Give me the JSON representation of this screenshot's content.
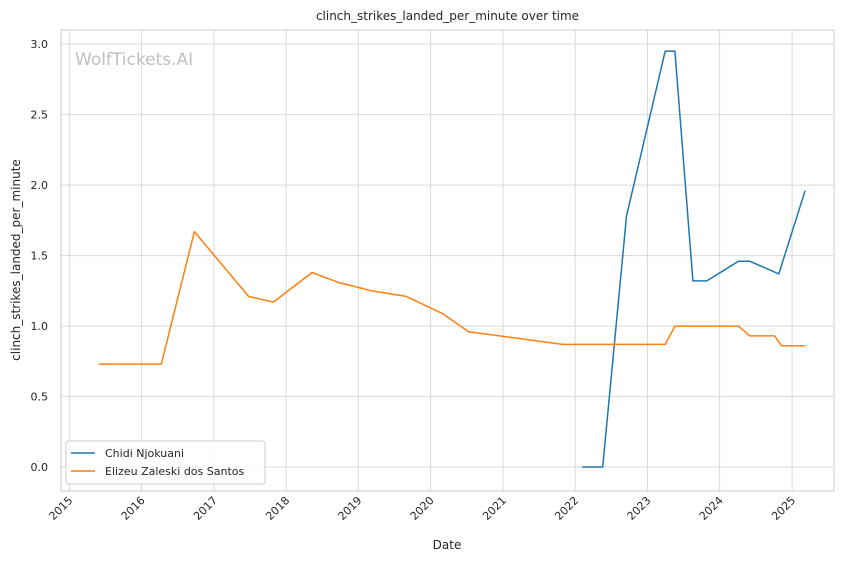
{
  "watermark": "WolfTickets.AI",
  "colors": {
    "series_1": "#1f77b4",
    "series_2": "#ff7f0e",
    "grid": "#d9d9d9",
    "frame": "#cccccc"
  },
  "chart_data": {
    "type": "line",
    "title": "clinch_strikes_landed_per_minute over time",
    "xlabel": "Date",
    "ylabel": "clinch_strikes_landed_per_minute",
    "xlim": [
      "2014-11-20",
      "2025-08-01"
    ],
    "ylim": [
      -0.17,
      3.1
    ],
    "x_ticks": [
      "2015",
      "2016",
      "2017",
      "2018",
      "2019",
      "2020",
      "2021",
      "2022",
      "2023",
      "2024",
      "2025"
    ],
    "y_ticks": [
      "0.0",
      "0.5",
      "1.0",
      "1.5",
      "2.0",
      "2.5",
      "3.0"
    ],
    "grid": true,
    "legend_position": "lower-left",
    "series": [
      {
        "name": "Chidi Njokuani",
        "x": [
          "2022-02-05",
          "2022-05-20",
          "2022-09-17",
          "2023-04-01",
          "2023-05-20",
          "2023-08-19",
          "2023-10-28",
          "2024-04-06",
          "2024-06-01",
          "2024-10-26",
          "2025-03-08"
        ],
        "y": [
          0.0,
          0.0,
          1.78,
          2.95,
          2.95,
          1.32,
          1.32,
          1.46,
          1.46,
          1.37,
          1.96
        ]
      },
      {
        "name": "Elizeu Zaleski dos Santos",
        "x": [
          "2015-05-30",
          "2016-04-10",
          "2016-09-24",
          "2017-06-25",
          "2017-10-28",
          "2018-05-12",
          "2018-09-22",
          "2019-03-09",
          "2019-08-31",
          "2020-02-29",
          "2020-07-11",
          "2021-10-30",
          "2022-05-21",
          "2023-04-01",
          "2023-05-20",
          "2024-04-06",
          "2024-06-01",
          "2024-10-05",
          "2024-11-09",
          "2025-03-08"
        ],
        "y": [
          0.73,
          0.73,
          1.67,
          1.21,
          1.17,
          1.38,
          1.31,
          1.25,
          1.21,
          1.09,
          0.96,
          0.87,
          0.87,
          0.87,
          1.0,
          1.0,
          0.93,
          0.93,
          0.86,
          0.86
        ]
      }
    ]
  }
}
